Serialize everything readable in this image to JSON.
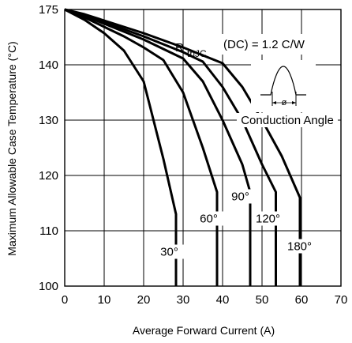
{
  "chart_data": {
    "type": "line",
    "title": "",
    "xlabel": "Average Forward Current (A)",
    "ylabel": "Maximum Allowable Case Temperature (°C)",
    "xlim": [
      0,
      70
    ],
    "ylim": [
      100,
      175
    ],
    "xticks": [
      "0",
      "10",
      "20",
      "30",
      "40",
      "50",
      "60",
      "70"
    ],
    "yticks": [
      "100",
      "110",
      "120",
      "130",
      "140",
      "175"
    ],
    "grid": true,
    "annotation": {
      "r_symbol": "R",
      "r_subscript": "thJC",
      "r_value": "(DC) = 1.2 C/W",
      "phi": "ø",
      "conduction_angle": "Conduction Angle"
    },
    "series": [
      {
        "name": "30°",
        "label_at": [
          26.5,
          105.5
        ],
        "points": [
          [
            0,
            175
          ],
          [
            5,
            168.5
          ],
          [
            10,
            160
          ],
          [
            15,
            149
          ],
          [
            20,
            137
          ],
          [
            25,
            123
          ],
          [
            28.2,
            113
          ],
          [
            28.2,
            100
          ]
        ]
      },
      {
        "name": "60°",
        "label_at": [
          36.5,
          111.5
        ],
        "points": [
          [
            0,
            175
          ],
          [
            5,
            170
          ],
          [
            10,
            164
          ],
          [
            15,
            158
          ],
          [
            20,
            151
          ],
          [
            25,
            143
          ],
          [
            30,
            135
          ],
          [
            35,
            125
          ],
          [
            38.6,
            117
          ],
          [
            38.6,
            100
          ]
        ]
      },
      {
        "name": "90°",
        "label_at": [
          44.5,
          115.5
        ],
        "points": [
          [
            0,
            175
          ],
          [
            5,
            171
          ],
          [
            10,
            166
          ],
          [
            15,
            161
          ],
          [
            20,
            156
          ],
          [
            25,
            150
          ],
          [
            30,
            144
          ],
          [
            35,
            137
          ],
          [
            40,
            130
          ],
          [
            45,
            122
          ],
          [
            47,
            117
          ],
          [
            47,
            100
          ]
        ]
      },
      {
        "name": "120°",
        "label_at": [
          51.5,
          111.5
        ],
        "points": [
          [
            0,
            175
          ],
          [
            5,
            171.5
          ],
          [
            10,
            167
          ],
          [
            15,
            162.5
          ],
          [
            20,
            158
          ],
          [
            25,
            153
          ],
          [
            30,
            148
          ],
          [
            35,
            142
          ],
          [
            40,
            136
          ],
          [
            45,
            130
          ],
          [
            50,
            122
          ],
          [
            53.5,
            117
          ],
          [
            53.5,
            100
          ]
        ]
      },
      {
        "name": "180°",
        "label_at": [
          59.5,
          106.5
        ],
        "points": [
          [
            0,
            175
          ],
          [
            5,
            172
          ],
          [
            10,
            168
          ],
          [
            15,
            164
          ],
          [
            20,
            160
          ],
          [
            25,
            155.5
          ],
          [
            30,
            151
          ],
          [
            35,
            146
          ],
          [
            40,
            141
          ],
          [
            45,
            136
          ],
          [
            50,
            130
          ],
          [
            55,
            123.5
          ],
          [
            59.6,
            116
          ],
          [
            59.6,
            100
          ]
        ]
      }
    ]
  }
}
